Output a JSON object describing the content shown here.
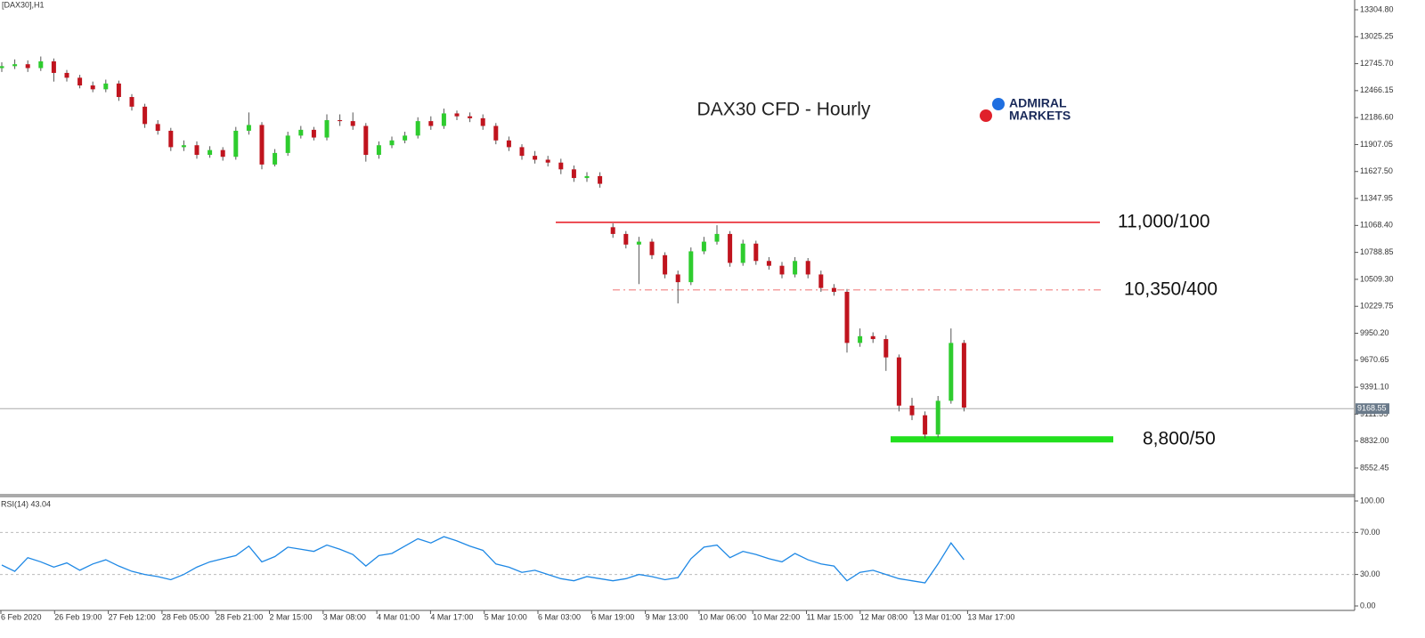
{
  "chart_data": {
    "type": "candlestick",
    "symbol": "[DAX30],H1",
    "title": "DAX30 CFD - Hourly",
    "logo": [
      "ADMIRAL",
      "MARKETS"
    ],
    "up_color": "#2ecc2e",
    "down_color": "#c0141e",
    "open": [
      12700,
      12720,
      12740,
      12700,
      12770,
      12650,
      12600,
      12520,
      12480,
      12540,
      12400,
      12300,
      12120,
      12050,
      11880,
      11900,
      11800,
      11850,
      11780,
      12050,
      12110,
      11700,
      11820,
      12000,
      12060,
      11980,
      12160,
      12150,
      12100,
      11800,
      11900,
      11950,
      12000,
      12150,
      12100,
      12230,
      12200,
      12180,
      12100,
      11950,
      11880,
      11790,
      11750,
      11720,
      11650,
      11560,
      11580,
      11050,
      10980,
      10870,
      10900,
      10760,
      10560,
      10480,
      10800,
      10900,
      10980,
      10680,
      10880,
      10700,
      10650,
      10560,
      10700,
      10560,
      10420,
      10380,
      9850,
      9920,
      9890,
      9700,
      9200,
      9100,
      8900,
      9250,
      9850
    ],
    "high": [
      12760,
      12790,
      12780,
      12820,
      12800,
      12680,
      12630,
      12560,
      12580,
      12570,
      12430,
      12330,
      12160,
      12080,
      11950,
      11940,
      11890,
      11880,
      12090,
      12240,
      12140,
      11860,
      12040,
      12100,
      12090,
      12220,
      12220,
      12240,
      12130,
      11940,
      11990,
      12040,
      12190,
      12200,
      12280,
      12260,
      12240,
      12220,
      12130,
      11990,
      11910,
      11840,
      11790,
      11760,
      11690,
      11620,
      11620,
      11090,
      11010,
      10950,
      10930,
      10790,
      10600,
      10840,
      10950,
      11070,
      11010,
      10920,
      10910,
      10740,
      10690,
      10740,
      10730,
      10600,
      10460,
      10410,
      10000,
      9960,
      9930,
      9730,
      9280,
      9140,
      9300,
      10000,
      9880
    ],
    "low": [
      12660,
      12690,
      12660,
      12670,
      12560,
      12560,
      12490,
      12450,
      12450,
      12360,
      12260,
      12080,
      12010,
      11840,
      11840,
      11760,
      11770,
      11740,
      11750,
      12010,
      11650,
      11680,
      11790,
      11970,
      11950,
      11950,
      12100,
      12060,
      11730,
      11760,
      11870,
      11920,
      11970,
      12060,
      12070,
      12160,
      12140,
      12060,
      11910,
      11840,
      11750,
      11710,
      11680,
      11600,
      11520,
      11520,
      11460,
      10940,
      10830,
      10460,
      10720,
      10520,
      10260,
      10450,
      10770,
      10870,
      10640,
      10650,
      10660,
      10610,
      10520,
      10530,
      10520,
      10380,
      10340,
      9750,
      9810,
      9850,
      9560,
      9140,
      9050,
      8860,
      8870,
      9220,
      9140
    ],
    "close": [
      12720,
      12740,
      12700,
      12770,
      12650,
      12600,
      12520,
      12480,
      12540,
      12400,
      12300,
      12120,
      12050,
      11880,
      11900,
      11800,
      11850,
      11780,
      12050,
      12110,
      11700,
      11820,
      12000,
      12060,
      11980,
      12160,
      12150,
      12100,
      11800,
      11900,
      11950,
      12000,
      12150,
      12100,
      12230,
      12200,
      12180,
      12100,
      11950,
      11880,
      11790,
      11750,
      11720,
      11650,
      11560,
      11580,
      11500,
      10980,
      10870,
      10900,
      10760,
      10560,
      10480,
      10800,
      10900,
      10980,
      10680,
      10880,
      10700,
      10650,
      10560,
      10700,
      10560,
      10420,
      10380,
      9850,
      9920,
      9890,
      9700,
      9200,
      9100,
      8900,
      9250,
      9850,
      9180
    ],
    "ylim": [
      8285,
      13406
    ],
    "yticks": [
      {
        "value": 13304.8,
        "label": "13304.80"
      },
      13025.25,
      {
        "value": 12745.7,
        "label": "12745.70"
      },
      12466.15,
      {
        "value": 12186.6,
        "label": "12186.60"
      },
      11907.05,
      {
        "value": 11627.5,
        "label": "11627.50"
      },
      11347.95,
      {
        "value": 11068.4,
        "label": "11068.40"
      },
      10788.85,
      {
        "value": 10509.3,
        "label": "10509.30"
      },
      10229.75,
      {
        "value": 9950.2,
        "label": "9950.20"
      },
      9670.65,
      {
        "value": 9391.1,
        "label": "9391.10"
      },
      9111.55,
      {
        "value": 8832,
        "label": "8832.00"
      },
      8552.45
    ],
    "current_price": 9168.55,
    "levels": [
      {
        "label": "11,000/100",
        "value": 11100,
        "color": "#e8141e",
        "style": "solid"
      },
      {
        "label": "10,350/400",
        "value": 10400,
        "color": "#f4a0a0",
        "style": "dashdot"
      },
      {
        "label": "8,800/50",
        "value": 8850,
        "color": "#22e01e",
        "style": "thick"
      }
    ],
    "x_labels": [
      "6 Feb 2020",
      "26 Feb 19:00",
      "27 Feb 12:00",
      "28 Feb 05:00",
      "28 Feb 21:00",
      "2 Mar 15:00",
      "3 Mar 08:00",
      "4 Mar 01:00",
      "4 Mar 17:00",
      "5 Mar 10:00",
      "6 Mar 03:00",
      "6 Mar 19:00",
      "9 Mar 13:00",
      "10 Mar 06:00",
      "10 Mar 22:00",
      "11 Mar 15:00",
      "12 Mar 08:00",
      "13 Mar 01:00",
      "13 Mar 17:00"
    ],
    "rsi": {
      "title": "RSI(14) 43.04",
      "color": "#1e88e5",
      "values": [
        39,
        33,
        46,
        42,
        37,
        41,
        34,
        40,
        44,
        38,
        33,
        30,
        28,
        25,
        30,
        37,
        42,
        45,
        48,
        57,
        42,
        47,
        56,
        54,
        52,
        58,
        54,
        49,
        38,
        48,
        50,
        57,
        64,
        60,
        66,
        62,
        57,
        53,
        40,
        37,
        32,
        34,
        30,
        26,
        24,
        28,
        26,
        24,
        26,
        30,
        28,
        25,
        27,
        45,
        56,
        58,
        46,
        52,
        49,
        45,
        42,
        50,
        44,
        40,
        38,
        24,
        32,
        34,
        30,
        26,
        24,
        22,
        40,
        60,
        44
      ],
      "ylim": [
        0,
        100
      ],
      "yticks": [
        {
          "value": 100,
          "label": "100.00"
        },
        {
          "value": 70,
          "label": "70.00"
        },
        {
          "value": 30,
          "label": "30.00"
        },
        {
          "value": 0,
          "label": "0.00"
        }
      ]
    }
  }
}
